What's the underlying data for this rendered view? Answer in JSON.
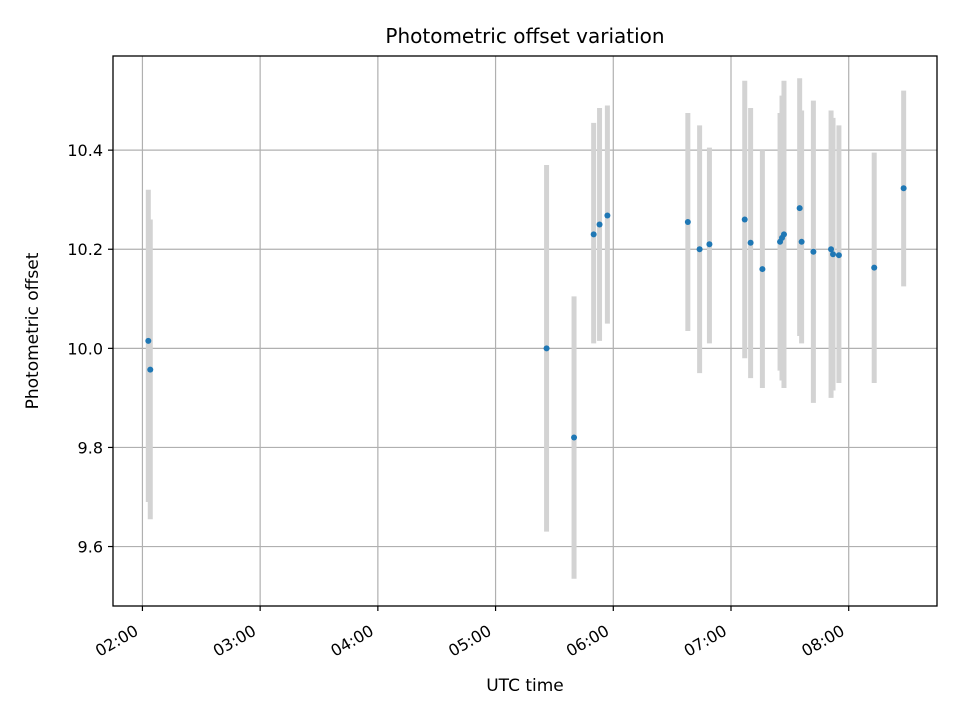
{
  "chart_data": {
    "type": "scatter",
    "title": "Photometric offset variation",
    "xlabel": "UTC time",
    "ylabel": "Photometric offset",
    "x_ticks": [
      "02:00",
      "03:00",
      "04:00",
      "05:00",
      "06:00",
      "07:00",
      "08:00"
    ],
    "y_ticks": [
      "9.6",
      "9.8",
      "10.0",
      "10.2",
      "10.4"
    ],
    "xlim": [
      "01:45",
      "08:45"
    ],
    "ylim": [
      9.48,
      10.59
    ],
    "grid": true,
    "colors": {
      "point": "#1f77b4",
      "errorbar": "#d3d3d3",
      "grid": "#b0b0b0"
    },
    "points": [
      {
        "x": "02:03",
        "y": 10.015,
        "lo": 9.69,
        "hi": 10.32
      },
      {
        "x": "02:04",
        "y": 9.957,
        "lo": 9.655,
        "hi": 10.26
      },
      {
        "x": "05:26",
        "y": 10.0,
        "lo": 9.63,
        "hi": 10.37
      },
      {
        "x": "05:40",
        "y": 9.82,
        "lo": 9.535,
        "hi": 10.105
      },
      {
        "x": "05:50",
        "y": 10.23,
        "lo": 10.01,
        "hi": 10.455
      },
      {
        "x": "05:53",
        "y": 10.25,
        "lo": 10.015,
        "hi": 10.485
      },
      {
        "x": "05:57",
        "y": 10.268,
        "lo": 10.05,
        "hi": 10.49
      },
      {
        "x": "06:38",
        "y": 10.255,
        "lo": 10.035,
        "hi": 10.475
      },
      {
        "x": "06:44",
        "y": 10.2,
        "lo": 9.95,
        "hi": 10.45
      },
      {
        "x": "06:49",
        "y": 10.21,
        "lo": 10.01,
        "hi": 10.405
      },
      {
        "x": "07:07",
        "y": 10.26,
        "lo": 9.98,
        "hi": 10.54
      },
      {
        "x": "07:10",
        "y": 10.213,
        "lo": 9.94,
        "hi": 10.485
      },
      {
        "x": "07:16",
        "y": 10.16,
        "lo": 9.92,
        "hi": 10.4
      },
      {
        "x": "07:25",
        "y": 10.215,
        "lo": 9.955,
        "hi": 10.475
      },
      {
        "x": "07:26",
        "y": 10.223,
        "lo": 9.935,
        "hi": 10.51
      },
      {
        "x": "07:27",
        "y": 10.23,
        "lo": 9.92,
        "hi": 10.54
      },
      {
        "x": "07:35",
        "y": 10.283,
        "lo": 10.025,
        "hi": 10.545
      },
      {
        "x": "07:36",
        "y": 10.215,
        "lo": 10.01,
        "hi": 10.48
      },
      {
        "x": "07:42",
        "y": 10.195,
        "lo": 9.89,
        "hi": 10.5
      },
      {
        "x": "07:51",
        "y": 10.2,
        "lo": 9.9,
        "hi": 10.48
      },
      {
        "x": "07:52",
        "y": 10.19,
        "lo": 9.915,
        "hi": 10.465
      },
      {
        "x": "07:55",
        "y": 10.188,
        "lo": 9.93,
        "hi": 10.45
      },
      {
        "x": "08:13",
        "y": 10.163,
        "lo": 9.93,
        "hi": 10.395
      },
      {
        "x": "08:28",
        "y": 10.323,
        "lo": 10.125,
        "hi": 10.52
      }
    ]
  }
}
